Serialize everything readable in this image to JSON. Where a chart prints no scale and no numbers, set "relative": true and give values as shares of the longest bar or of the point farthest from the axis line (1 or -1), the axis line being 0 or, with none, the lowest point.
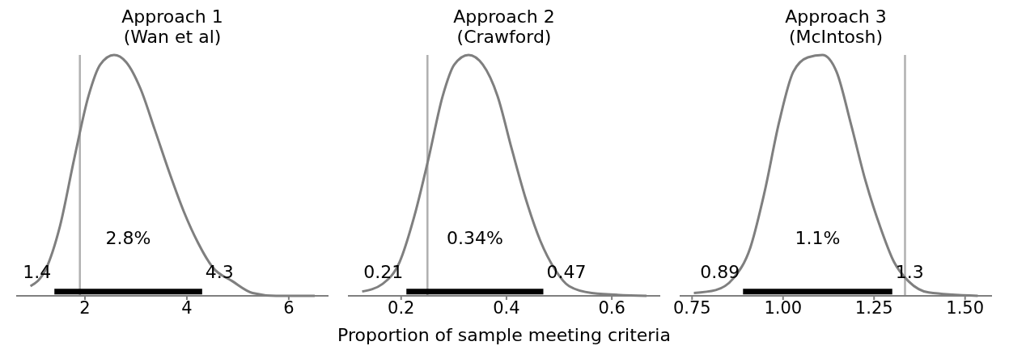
{
  "chart_data": [
    {
      "type": "line",
      "title": "Approach 1\n(Wan et al)",
      "relative": true,
      "xlim": [
        0.65,
        6.78
      ],
      "xticks": [
        2,
        4,
        6
      ],
      "series": [
        {
          "color": "#7f7f7f",
          "x": [
            0.93,
            1.23,
            1.51,
            1.79,
            2.07,
            2.3,
            2.57,
            2.81,
            3.09,
            3.37,
            3.66,
            3.94,
            4.22,
            4.5,
            4.9,
            5.29,
            5.75,
            6.51
          ],
          "values": [
            0.04,
            0.11,
            0.29,
            0.57,
            0.83,
            0.96,
            1.0,
            0.97,
            0.86,
            0.69,
            0.51,
            0.35,
            0.22,
            0.12,
            0.06,
            0.012,
            0,
            0
          ]
        },
        {
          "color": "#000000",
          "x": [
            1.4,
            4.3
          ],
          "values": [
            0.018,
            0.018
          ]
        }
      ],
      "ref_lines": [
        {
          "axis": "x",
          "value": 1.9,
          "color": "#b0b0b0"
        }
      ],
      "annotations": [
        "1.4",
        "2.8%",
        "4.3"
      ]
    },
    {
      "type": "line",
      "title": "Approach 2\n(Crawford)",
      "xlabel": "Proportion of sample meeting criteria",
      "relative": true,
      "xlim": [
        0.099,
        0.692
      ],
      "xticks": [
        0.2,
        0.4,
        0.6
      ],
      "series": [
        {
          "color": "#7f7f7f",
          "x": [
            0.126,
            0.165,
            0.197,
            0.225,
            0.252,
            0.279,
            0.301,
            0.328,
            0.355,
            0.383,
            0.41,
            0.437,
            0.464,
            0.492,
            0.519,
            0.562,
            0.666
          ],
          "values": [
            0.018,
            0.05,
            0.14,
            0.33,
            0.57,
            0.83,
            0.96,
            1.0,
            0.96,
            0.83,
            0.61,
            0.4,
            0.23,
            0.11,
            0.04,
            0.012,
            0
          ]
        },
        {
          "color": "#000000",
          "x": [
            0.21,
            0.47
          ],
          "values": [
            0.018,
            0.018
          ]
        }
      ],
      "ref_lines": [
        {
          "axis": "x",
          "value": 0.25,
          "color": "#b0b0b0"
        }
      ],
      "annotations": [
        "0.21",
        "0.34%",
        "0.47"
      ]
    },
    {
      "type": "line",
      "title": "Approach 3\n(McIntosh)",
      "relative": true,
      "xlim": [
        0.716,
        1.574
      ],
      "xticks": [
        0.75,
        {
          "value": 1,
          "label": "1.00"
        },
        1.25,
        {
          "value": 1.5,
          "label": "1.50"
        }
      ],
      "series": [
        {
          "color": "#7f7f7f",
          "x": [
            0.755,
            0.815,
            0.862,
            0.91,
            0.949,
            0.989,
            1.028,
            1.068,
            1.108,
            1.147,
            1.187,
            1.226,
            1.266,
            1.305,
            1.345,
            1.4,
            1.535
          ],
          "values": [
            0.012,
            0.024,
            0.07,
            0.2,
            0.43,
            0.72,
            0.93,
            0.99,
            1.0,
            0.93,
            0.71,
            0.48,
            0.29,
            0.14,
            0.06,
            0.014,
            0
          ]
        },
        {
          "color": "#000000",
          "x": [
            0.89,
            1.3
          ],
          "values": [
            0.018,
            0.018
          ]
        }
      ],
      "ref_lines": [
        {
          "axis": "x",
          "value": 1.335,
          "color": "#b0b0b0"
        }
      ],
      "annotations": [
        "0.89",
        "1.1%",
        "1.3"
      ]
    }
  ]
}
